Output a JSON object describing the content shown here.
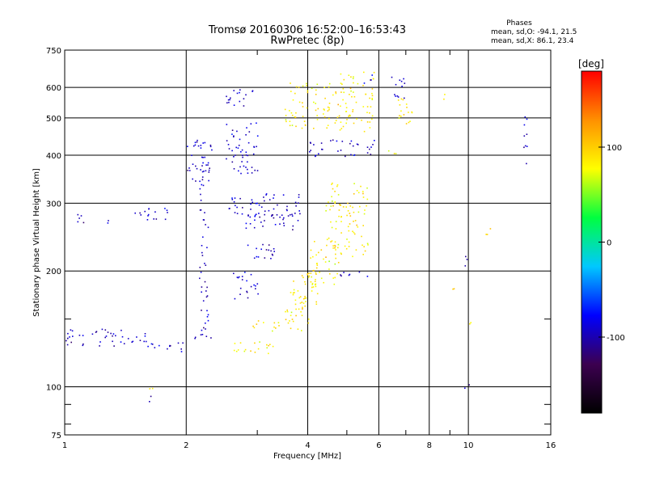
{
  "chart_data": {
    "type": "scatter",
    "title": "Tromsø 20160306 16:52:00–16:53:43",
    "subtitle": "RwPretec (8p)",
    "xlabel": "Frequency [MHz]",
    "ylabel": "Stationary phase Virtual Height [km]",
    "x_scale": "log",
    "y_scale": "log",
    "xlim": [
      1,
      16
    ],
    "ylim": [
      75,
      750
    ],
    "x_ticks": [
      1,
      2,
      4,
      6,
      8,
      10,
      16
    ],
    "x_tick_labels": [
      "1",
      "2",
      "4",
      "6",
      "8",
      "10",
      "16"
    ],
    "x_minor_ticks": [
      3,
      5,
      7,
      9
    ],
    "y_ticks": [
      75,
      100,
      200,
      300,
      400,
      500,
      600,
      750
    ],
    "y_tick_labels": [
      "75",
      "100",
      "200",
      "300",
      "400",
      "500",
      "600",
      "750"
    ],
    "y_minor_ticks": [
      80,
      90,
      150
    ],
    "grid": true,
    "legend": {
      "title": "Phases",
      "lines": [
        "mean, sd,O: -94.1, 21.5",
        "mean, sd,X:  86.1, 23.4"
      ],
      "position": "top-right"
    },
    "colorbar": {
      "label": "[deg]",
      "range": [
        -180,
        180
      ],
      "ticks": [
        100,
        0,
        -100
      ],
      "tick_labels": [
        "100",
        "0",
        "-100"
      ],
      "colormap": "rainbow",
      "colors": [
        "#000000",
        "#3c0050",
        "#0000ff",
        "#00c8ff",
        "#00ff40",
        "#ffff00",
        "#ff9000",
        "#ff0000"
      ]
    },
    "series": [
      {
        "name": "O",
        "phase_mean": -94.1,
        "phase_sd": 21.5,
        "clusters": [
          {
            "x": [
              1.0,
              1.6
            ],
            "y": [
              128,
              142
            ]
          },
          {
            "x": [
              1.6,
              2.0
            ],
            "y": [
              124,
              131
            ]
          },
          {
            "x": [
              2.0,
              2.3
            ],
            "y": [
              134,
              143
            ]
          },
          {
            "x": [
              1.05,
              1.15
            ],
            "y": [
              268,
              282
            ]
          },
          {
            "x": [
              1.25,
              1.3
            ],
            "y": [
              268,
              272
            ]
          },
          {
            "x": [
              1.45,
              1.8
            ],
            "y": [
              270,
              292
            ]
          },
          {
            "x": [
              2.0,
              2.3
            ],
            "y": [
              340,
              440
            ]
          },
          {
            "x": [
              2.15,
              2.25
            ],
            "y": [
              145,
              400
            ]
          },
          {
            "x": [
              2.5,
              2.9
            ],
            "y": [
              530,
              600
            ]
          },
          {
            "x": [
              2.5,
              3.0
            ],
            "y": [
              360,
              490
            ]
          },
          {
            "x": [
              2.5,
              3.8
            ],
            "y": [
              280,
              320
            ]
          },
          {
            "x": [
              2.8,
              3.8
            ],
            "y": [
              255,
              285
            ]
          },
          {
            "x": [
              2.6,
              3.0
            ],
            "y": [
              170,
              200
            ]
          },
          {
            "x": [
              2.8,
              3.3
            ],
            "y": [
              215,
              240
            ]
          },
          {
            "x": [
              4.0,
              5.8
            ],
            "y": [
              400,
              440
            ]
          },
          {
            "x": [
              4.6,
              5.6
            ],
            "y": [
              194,
              200
            ]
          },
          {
            "x": [
              5.4,
              5.8
            ],
            "y": [
              620,
              650
            ]
          },
          {
            "x": [
              6.4,
              7.0
            ],
            "y": [
              560,
              640
            ]
          },
          {
            "x": [
              13.6,
              13.9
            ],
            "y": [
              380,
              540
            ]
          },
          {
            "x": [
              9.7,
              9.9
            ],
            "y": [
              198,
              225
            ]
          },
          {
            "x": [
              9.7,
              10.0
            ],
            "y": [
              100,
              102
            ]
          },
          {
            "x": [
              1.6,
              1.65
            ],
            "y": [
              92,
              95
            ]
          }
        ]
      },
      {
        "name": "X",
        "phase_mean": 86.1,
        "phase_sd": 23.4,
        "clusters": [
          {
            "x": [
              2.6,
              3.3
            ],
            "y": [
              122,
              132
            ]
          },
          {
            "x": [
              2.9,
              3.4
            ],
            "y": [
              140,
              150
            ]
          },
          {
            "x": [
              3.5,
              4.0
            ],
            "y": [
              140,
              175
            ]
          },
          {
            "x": [
              3.6,
              4.2
            ],
            "y": [
              160,
              200
            ]
          },
          {
            "x": [
              4.0,
              4.8
            ],
            "y": [
              180,
              240
            ]
          },
          {
            "x": [
              4.4,
              5.6
            ],
            "y": [
              220,
              340
            ]
          },
          {
            "x": [
              3.5,
              4.5
            ],
            "y": [
              470,
              620
            ]
          },
          {
            "x": [
              4.6,
              5.8
            ],
            "y": [
              460,
              660
            ]
          },
          {
            "x": [
              6.6,
              7.2
            ],
            "y": [
              470,
              580
            ]
          },
          {
            "x": [
              6.3,
              6.6
            ],
            "y": [
              395,
              420
            ]
          },
          {
            "x": [
              11.0,
              11.3
            ],
            "y": [
              240,
              260
            ]
          },
          {
            "x": [
              8.5,
              9.0
            ],
            "y": [
              560,
              580
            ]
          },
          {
            "x": [
              9.0,
              9.2
            ],
            "y": [
              178,
              182
            ]
          },
          {
            "x": [
              9.9,
              10.1
            ],
            "y": [
              145,
              148
            ]
          },
          {
            "x": [
              1.6,
              1.65
            ],
            "y": [
              99,
              101
            ]
          }
        ]
      }
    ]
  }
}
